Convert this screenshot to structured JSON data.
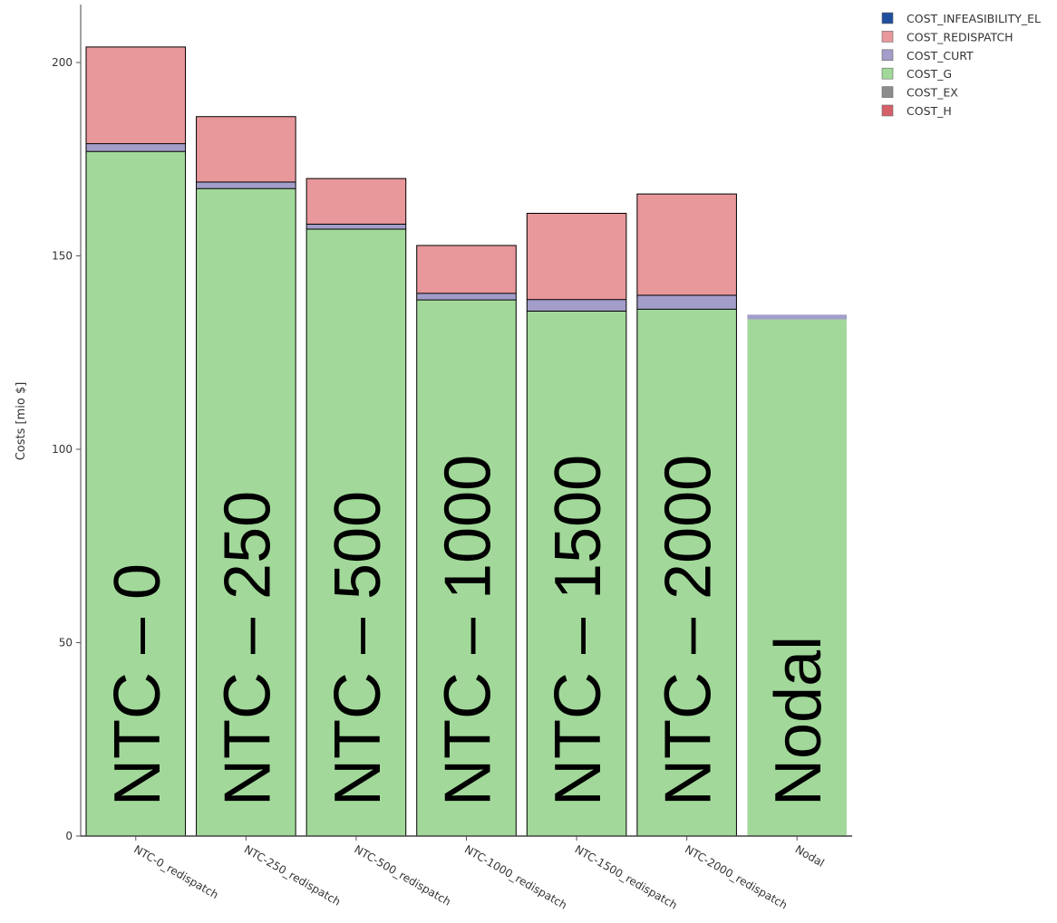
{
  "colors": {
    "COST_INFEASIBILITY_EL": "#1f4e9c",
    "COST_REDISPATCH": "#e8979b",
    "COST_CURT": "#a29dc9",
    "COST_G": "#a2d99a",
    "COST_EX": "#8c8c8c",
    "COST_H": "#d5606a"
  },
  "chart_data": {
    "type": "bar",
    "stacked": true,
    "ylabel": "Costs [mio $]",
    "ylim": [
      0,
      215
    ],
    "yticks": [
      0,
      50,
      100,
      150,
      200
    ],
    "grid": false,
    "legend_position": "top-right",
    "categories": [
      "NTC-0_redispatch",
      "NTC-250_redispatch",
      "NTC-500_redispatch",
      "NTC-1000_redispatch",
      "NTC-1500_redispatch",
      "NTC-2000_redispatch",
      "Nodal"
    ],
    "annotations": [
      "NTC – 0",
      "NTC – 250",
      "NTC – 500",
      "NTC – 1000",
      "NTC – 1500",
      "NTC – 2000",
      "Nodal"
    ],
    "series": [
      {
        "name": "COST_INFEASIBILITY_EL",
        "values": [
          0,
          0,
          0,
          0,
          0,
          0,
          0
        ]
      },
      {
        "name": "COST_REDISPATCH",
        "values": [
          25,
          16.9,
          11.8,
          12.4,
          22.3,
          26.2,
          0
        ]
      },
      {
        "name": "COST_CURT",
        "values": [
          2,
          1.7,
          1.3,
          1.7,
          3.0,
          3.6,
          1.2
        ]
      },
      {
        "name": "COST_G",
        "values": [
          177,
          167.4,
          156.9,
          138.6,
          135.7,
          136.2,
          133.6
        ]
      },
      {
        "name": "COST_EX",
        "values": [
          0,
          0,
          0,
          0,
          0,
          0,
          0
        ]
      },
      {
        "name": "COST_H",
        "values": [
          0,
          0,
          0,
          0,
          0,
          0,
          0
        ]
      }
    ]
  }
}
